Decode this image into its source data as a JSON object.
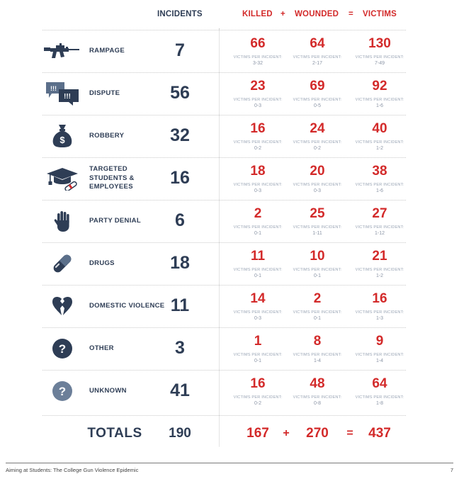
{
  "headers": {
    "incidents": "INCIDENTS",
    "killed": "KILLED",
    "plus": "+",
    "wounded": "WOUNDED",
    "equals": "=",
    "victims": "VICTIMS"
  },
  "vpi_label": "VICTIMS PER INCIDENT:",
  "rows": [
    {
      "icon": "rifle-icon",
      "category": "RAMPAGE",
      "incidents": "7",
      "killed": "66",
      "killed_range": "3-32",
      "wounded": "64",
      "wounded_range": "2-17",
      "victims": "130",
      "victims_range": "7-49"
    },
    {
      "icon": "speech-bubbles-icon",
      "category": "DISPUTE",
      "incidents": "56",
      "killed": "23",
      "killed_range": "0-3",
      "wounded": "69",
      "wounded_range": "0-5",
      "victims": "92",
      "victims_range": "1-6"
    },
    {
      "icon": "money-bag-icon",
      "category": "ROBBERY",
      "incidents": "32",
      "killed": "16",
      "killed_range": "0-2",
      "wounded": "24",
      "wounded_range": "0-2",
      "victims": "40",
      "victims_range": "1-2"
    },
    {
      "icon": "graduation-cap-icon",
      "category": "TARGETED STUDENTS & EMPLOYEES",
      "incidents": "16",
      "killed": "18",
      "killed_range": "0-3",
      "wounded": "20",
      "wounded_range": "0-3",
      "victims": "38",
      "victims_range": "1-6"
    },
    {
      "icon": "hand-icon",
      "category": "PARTY DENIAL",
      "incidents": "6",
      "killed": "2",
      "killed_range": "0-1",
      "wounded": "25",
      "wounded_range": "1-11",
      "victims": "27",
      "victims_range": "1-12"
    },
    {
      "icon": "pill-icon",
      "category": "DRUGS",
      "incidents": "18",
      "killed": "11",
      "killed_range": "0-1",
      "wounded": "10",
      "wounded_range": "0-1",
      "victims": "21",
      "victims_range": "1-2"
    },
    {
      "icon": "broken-heart-icon",
      "category": "DOMESTIC VIOLENCE",
      "incidents": "11",
      "killed": "14",
      "killed_range": "0-3",
      "wounded": "2",
      "wounded_range": "0-1",
      "victims": "16",
      "victims_range": "1-3"
    },
    {
      "icon": "question-dark-icon",
      "category": "OTHER",
      "incidents": "3",
      "killed": "1",
      "killed_range": "0-1",
      "wounded": "8",
      "wounded_range": "1-4",
      "victims": "9",
      "victims_range": "1-4"
    },
    {
      "icon": "question-light-icon",
      "category": "UNKNOWN",
      "incidents": "41",
      "killed": "16",
      "killed_range": "0-2",
      "wounded": "48",
      "wounded_range": "0-8",
      "victims": "64",
      "victims_range": "1-8"
    }
  ],
  "totals": {
    "label": "TOTALS",
    "incidents": "190",
    "killed": "167",
    "plus": "+",
    "wounded": "270",
    "equals": "=",
    "victims": "437"
  },
  "footer": {
    "title": "Aiming at Students: The College Gun Violence Epidemic",
    "page": "7"
  },
  "colors": {
    "navy": "#2e3d55",
    "red": "#d32a2a",
    "gray": "#9aa5b5"
  }
}
